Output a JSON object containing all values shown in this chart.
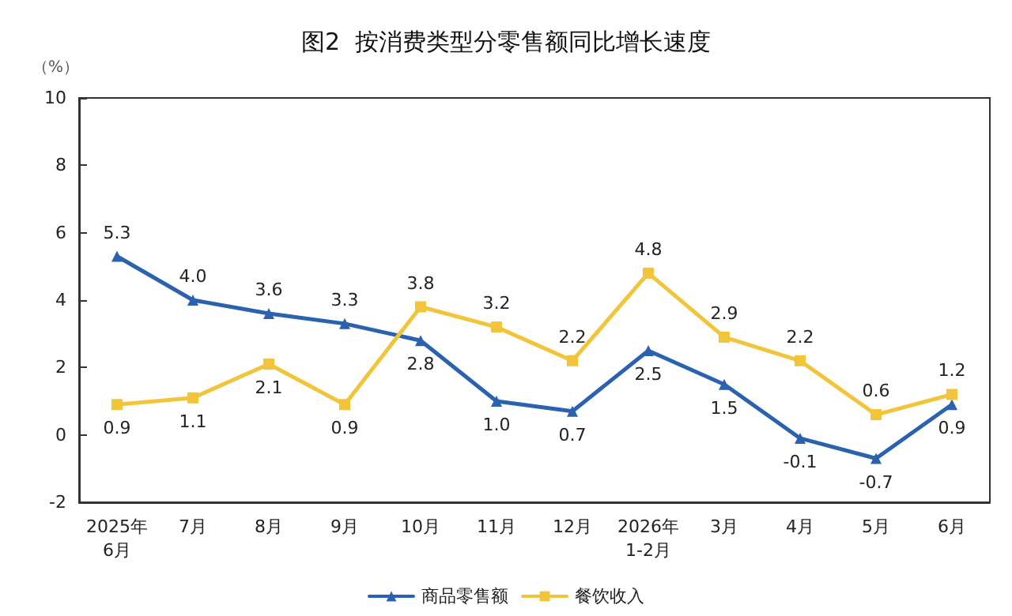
{
  "chart_data": {
    "type": "line",
    "title": "图2  按消费类型分零售额同比增长速度",
    "ylabel": "（%）",
    "categories": [
      "2025年\n6月",
      "7月",
      "8月",
      "9月",
      "10月",
      "11月",
      "12月",
      "2026年\n1-2月",
      "3月",
      "4月",
      "5月",
      "6月"
    ],
    "series": [
      {
        "name": "商品零售额",
        "color": "#2a62b0",
        "marker": "triangle",
        "values": [
          5.3,
          4.0,
          3.6,
          3.3,
          2.8,
          1.0,
          0.7,
          2.5,
          1.5,
          -0.1,
          -0.7,
          0.9
        ],
        "value_labels": [
          "5.3",
          "4.0",
          "3.6",
          "3.3",
          "2.8",
          "1.0",
          "0.7",
          "2.5",
          "1.5",
          "-0.1",
          "-0.7",
          "0.9"
        ]
      },
      {
        "name": "餐饮收入",
        "color": "#f2c43a",
        "marker": "square",
        "values": [
          0.9,
          1.1,
          2.1,
          0.9,
          3.8,
          3.2,
          2.2,
          4.8,
          2.9,
          2.2,
          0.6,
          1.2
        ],
        "value_labels": [
          "0.9",
          "1.1",
          "2.1",
          "0.9",
          "3.8",
          "3.2",
          "2.2",
          "4.8",
          "2.9",
          "2.2",
          "0.6",
          "1.2"
        ]
      }
    ],
    "ylim": [
      -2,
      10
    ],
    "yticks": [
      -2,
      0,
      2,
      4,
      6,
      8,
      10
    ],
    "grid": false,
    "legend": "bottom",
    "line_style": "solid"
  }
}
